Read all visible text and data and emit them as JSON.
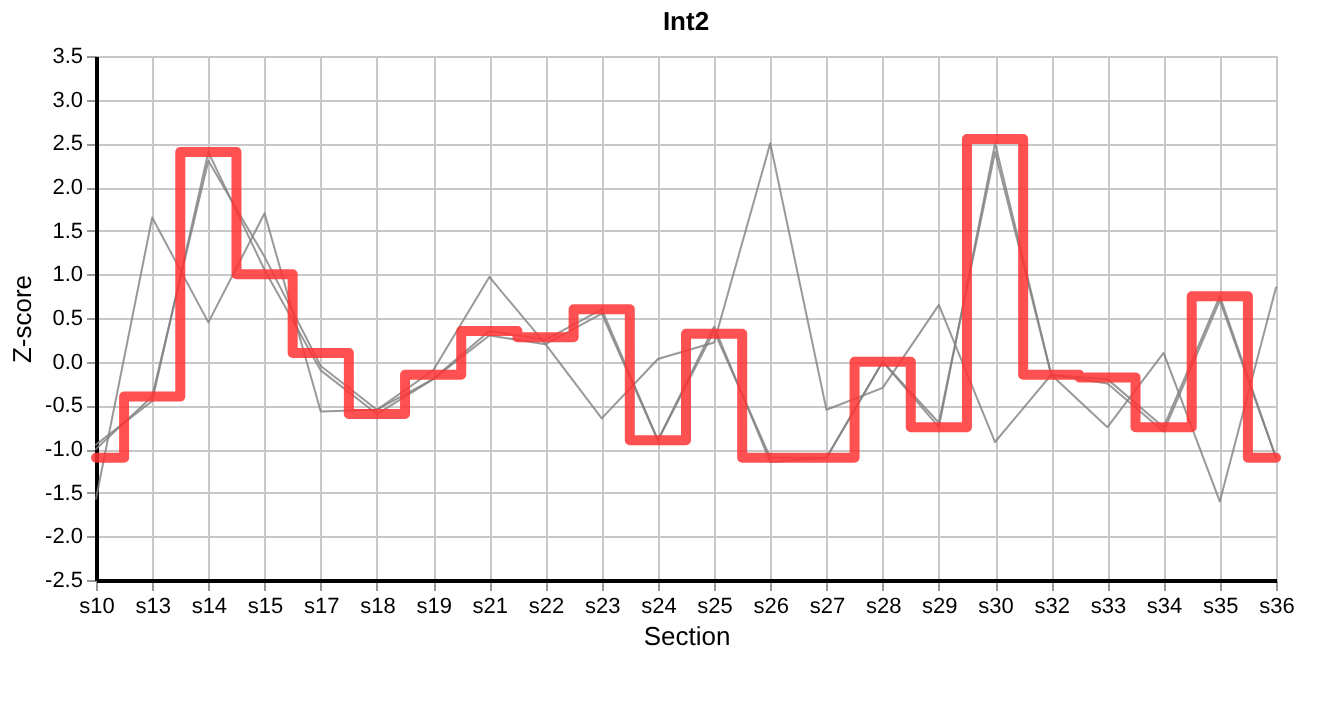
{
  "chart_data": {
    "type": "line",
    "title": "Int2",
    "xlabel": "Section",
    "ylabel": "Z-score",
    "categories": [
      "s10",
      "s13",
      "s14",
      "s15",
      "s17",
      "s18",
      "s19",
      "s21",
      "s22",
      "s23",
      "s24",
      "s25",
      "s26",
      "s27",
      "s28",
      "s29",
      "s30",
      "s32",
      "s33",
      "s34",
      "s35",
      "s36"
    ],
    "series": [
      {
        "color": "#808080",
        "values": [
          -1.57,
          1.65,
          0.45,
          1.7,
          -0.57,
          -0.55,
          -0.1,
          0.97,
          0.2,
          -0.65,
          0.03,
          0.22,
          2.5,
          -0.55,
          -0.3,
          0.65,
          -0.92,
          -0.15,
          -0.75,
          0.1,
          -1.6,
          0.85
        ]
      },
      {
        "color": "#808080",
        "values": [
          -1.0,
          -0.4,
          2.3,
          1.2,
          -0.05,
          -0.55,
          -0.2,
          0.3,
          0.2,
          0.55,
          -0.9,
          0.4,
          -1.15,
          -1.1,
          0.0,
          -0.7,
          2.4,
          -0.15,
          -0.25,
          -0.8,
          0.7,
          -1.1
        ]
      },
      {
        "color": "#808080",
        "values": [
          -0.95,
          -0.45,
          2.4,
          1.05,
          -0.1,
          -0.6,
          -0.2,
          0.35,
          0.25,
          0.6,
          -0.9,
          0.35,
          -1.1,
          -1.1,
          0.0,
          -0.75,
          2.5,
          -0.15,
          -0.2,
          -0.75,
          0.75,
          -1.1
        ]
      },
      {
        "type": "step",
        "color": "#ff3333",
        "values": [
          -1.1,
          -0.4,
          2.4,
          1.0,
          0.1,
          -0.6,
          -0.15,
          0.35,
          0.28,
          0.6,
          -0.9,
          0.32,
          -1.1,
          -1.1,
          0.0,
          -0.75,
          2.55,
          -0.15,
          -0.18,
          -0.75,
          0.75,
          -1.1
        ]
      }
    ],
    "ylim": [
      -2.5,
      3.5
    ],
    "yticks": [
      {
        "value": -2.5,
        "label": "-2.5"
      },
      {
        "value": -2,
        "label": "-2.0"
      },
      {
        "value": -1.5,
        "label": "-1.5"
      },
      {
        "value": -1,
        "label": "-1.0"
      },
      {
        "value": -0.5,
        "label": "-0.5"
      },
      {
        "value": 0,
        "label": "0.0"
      },
      {
        "value": 0.5,
        "label": "0.5"
      },
      {
        "value": 1,
        "label": "1.0"
      },
      {
        "value": 1.5,
        "label": "1.5"
      },
      {
        "value": 2,
        "label": "2.0"
      },
      {
        "value": 2.5,
        "label": "2.5"
      },
      {
        "value": 3,
        "label": "3.0"
      },
      {
        "value": 3.5,
        "label": "3.5"
      }
    ],
    "grid": true
  }
}
